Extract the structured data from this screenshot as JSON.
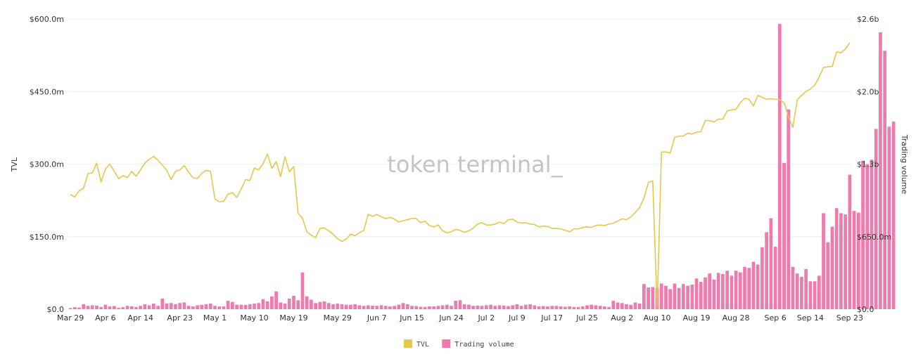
{
  "watermark": "token terminal_",
  "legend": [
    {
      "label": "TVL",
      "color": "#e3c84a"
    },
    {
      "label": "Trading volume",
      "color": "#ef7bae"
    }
  ],
  "chart_data": {
    "type": "bar+line",
    "xlabel": "",
    "y_left_label": "TVL",
    "y_right_label": "Trading volume",
    "y_left_ticks": [
      "$0.0",
      "$150.0m",
      "$300.0m",
      "$450.0m",
      "$600.0m"
    ],
    "y_right_ticks": [
      "$0.0",
      "$650.0m",
      "$1.3b",
      "$2.0b",
      "$2.6b"
    ],
    "y_left_range": [
      0,
      600
    ],
    "y_right_range": [
      0,
      2600
    ],
    "x_ticks": [
      "Mar 29",
      "Apr 6",
      "Apr 14",
      "Apr 23",
      "May 1",
      "May 10",
      "May 19",
      "May 29",
      "Jun 7",
      "Jun 15",
      "Jun 24",
      "Jul 2",
      "Jul 9",
      "Jul 17",
      "Jul 25",
      "Aug 2",
      "Aug 10",
      "Aug 19",
      "Aug 28",
      "Sep 6",
      "Sep 14",
      "Sep 23"
    ],
    "start_date": "2023-03-29",
    "end_date": "2023-09-24",
    "grid": true,
    "legend_position": "bottom-center",
    "series": [
      {
        "name": "TVL",
        "type": "line",
        "axis": "left",
        "color": "#e3c84a",
        "values": [
          237,
          232,
          245,
          250,
          280,
          282,
          302,
          263,
          290,
          300,
          285,
          270,
          276,
          272,
          285,
          275,
          288,
          302,
          310,
          316,
          308,
          298,
          287,
          268,
          285,
          288,
          297,
          283,
          272,
          270,
          281,
          287,
          285,
          228,
          222,
          223,
          238,
          241,
          231,
          248,
          268,
          266,
          292,
          288,
          301,
          321,
          291,
          305,
          274,
          315,
          284,
          295,
          198,
          188,
          160,
          153,
          148,
          167,
          168,
          162,
          155,
          146,
          140,
          145,
          155,
          152,
          158,
          163,
          196,
          192,
          196,
          191,
          187,
          190,
          186,
          180,
          183,
          185,
          188,
          187,
          179,
          182,
          173,
          170,
          174,
          162,
          158,
          160,
          165,
          163,
          159,
          162,
          168,
          176,
          179,
          174,
          174,
          176,
          180,
          177,
          185,
          186,
          180,
          178,
          179,
          176,
          175,
          170,
          172,
          171,
          167,
          167,
          166,
          163,
          160,
          166,
          166,
          169,
          170,
          169,
          173,
          174,
          173,
          176,
          178,
          182,
          187,
          185,
          191,
          200,
          210,
          230,
          262,
          265,
          2,
          325,
          325,
          323,
          355,
          358,
          358,
          364,
          362,
          366,
          367,
          390,
          390,
          387,
          393,
          393,
          410,
          412,
          413,
          427,
          436,
          434,
          420,
          442,
          438,
          434,
          435,
          434,
          433,
          427,
          398,
          376,
          433,
          442,
          450,
          455,
          463,
          480,
          500,
          501,
          502,
          532,
          530,
          538,
          551
        ]
      },
      {
        "name": "Trading volume",
        "type": "bar",
        "axis": "right",
        "color": "#ef7bae",
        "values": [
          10,
          18,
          15,
          45,
          30,
          35,
          32,
          20,
          40,
          25,
          28,
          12,
          18,
          30,
          25,
          20,
          30,
          45,
          35,
          50,
          30,
          95,
          52,
          55,
          45,
          55,
          60,
          30,
          25,
          35,
          38,
          45,
          50,
          30,
          25,
          25,
          75,
          65,
          40,
          40,
          38,
          45,
          50,
          55,
          90,
          70,
          115,
          160,
          60,
          50,
          95,
          120,
          80,
          330,
          115,
          85,
          55,
          65,
          70,
          55,
          45,
          50,
          45,
          40,
          40,
          45,
          35,
          30,
          35,
          32,
          30,
          35,
          30,
          25,
          30,
          40,
          55,
          45,
          30,
          28,
          22,
          20,
          25,
          25,
          30,
          35,
          40,
          30,
          75,
          80,
          45,
          40,
          30,
          32,
          30,
          35,
          40,
          30,
          35,
          32,
          28,
          35,
          45,
          30,
          40,
          45,
          35,
          25,
          28,
          25,
          30,
          30,
          25,
          22,
          25,
          20,
          20,
          25,
          35,
          40,
          35,
          30,
          25,
          20,
          75,
          60,
          55,
          45,
          40,
          60,
          50,
          225,
          195,
          198,
          190,
          230,
          210,
          180,
          230,
          190,
          225,
          210,
          220,
          275,
          245,
          285,
          320,
          265,
          325,
          315,
          345,
          300,
          345,
          330,
          380,
          370,
          425,
          400,
          555,
          690,
          815,
          560,
          2555,
          1310,
          1790,
          380,
          320,
          290,
          360,
          250,
          250,
          300,
          860,
          600,
          740,
          905,
          860,
          850,
          1205,
          880,
          865,
          1330,
          1300,
          1340,
          1615,
          2480,
          2315,
          1635,
          1680
        ]
      }
    ]
  }
}
